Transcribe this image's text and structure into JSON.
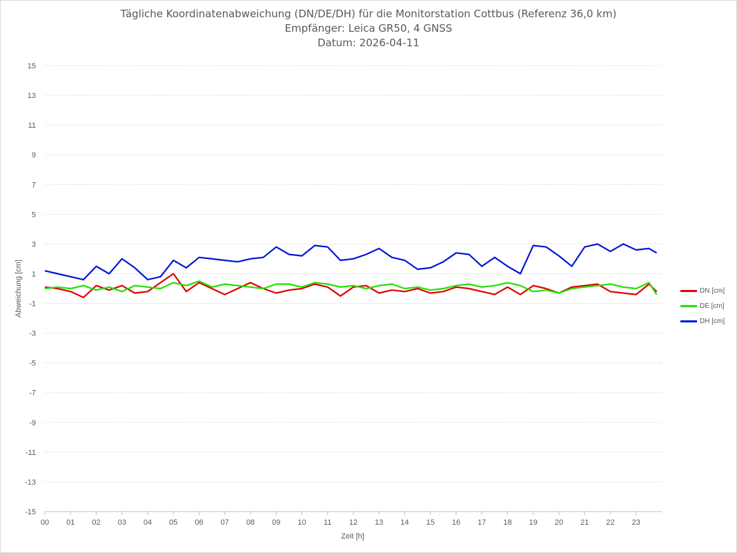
{
  "chart_data": {
    "type": "line",
    "title": "Tägliche Koordinatenabweichung (DN/DE/DH) für die Monitorstation Cottbus (Referenz 36,0 km)",
    "subtitle": "Empfänger: Leica GR50, 4 GNSS",
    "date_line": "Datum: 2026-04-11",
    "xlabel": "Zeit [h]",
    "ylabel": "Abweichung [cm]",
    "xlim": [
      0,
      24
    ],
    "ylim": [
      -15,
      15
    ],
    "x_ticks": [
      "00",
      "01",
      "02",
      "03",
      "04",
      "05",
      "06",
      "07",
      "08",
      "09",
      "10",
      "11",
      "12",
      "13",
      "14",
      "15",
      "16",
      "17",
      "18",
      "19",
      "20",
      "21",
      "22",
      "23"
    ],
    "y_ticks": [
      15,
      13,
      11,
      9,
      7,
      5,
      3,
      1,
      -1,
      -3,
      -5,
      -7,
      -9,
      -11,
      -13,
      -15
    ],
    "grid": true,
    "legend_position": "right",
    "series": [
      {
        "name": "DN [cm]",
        "color": "#e00000",
        "x": [
          0,
          0.5,
          1,
          1.5,
          2,
          2.5,
          3,
          3.5,
          4,
          4.5,
          5,
          5.5,
          6,
          6.5,
          7,
          7.5,
          8,
          8.5,
          9,
          9.5,
          10,
          10.5,
          11,
          11.5,
          12,
          12.5,
          13,
          13.5,
          14,
          14.5,
          15,
          15.5,
          16,
          16.5,
          17,
          17.5,
          18,
          18.5,
          19,
          19.5,
          20,
          20.5,
          21,
          21.5,
          22,
          22.5,
          23,
          23.5,
          23.8
        ],
        "values": [
          0.1,
          0.0,
          -0.2,
          -0.6,
          0.2,
          -0.1,
          0.2,
          -0.3,
          -0.2,
          0.4,
          1.0,
          -0.2,
          0.4,
          0.0,
          -0.4,
          0.0,
          0.4,
          0.0,
          -0.3,
          -0.1,
          0.0,
          0.3,
          0.1,
          -0.5,
          0.1,
          0.2,
          -0.3,
          -0.1,
          -0.2,
          0.0,
          -0.3,
          -0.2,
          0.1,
          0.0,
          -0.2,
          -0.4,
          0.1,
          -0.4,
          0.2,
          0.0,
          -0.3,
          0.1,
          0.2,
          0.3,
          -0.2,
          -0.3,
          -0.4,
          0.3,
          -0.2
        ]
      },
      {
        "name": "DE [cm]",
        "color": "#22e000",
        "x": [
          0,
          0.5,
          1,
          1.5,
          2,
          2.5,
          3,
          3.5,
          4,
          4.5,
          5,
          5.5,
          6,
          6.5,
          7,
          7.5,
          8,
          8.5,
          9,
          9.5,
          10,
          10.5,
          11,
          11.5,
          12,
          12.5,
          13,
          13.5,
          14,
          14.5,
          15,
          15.5,
          16,
          16.5,
          17,
          17.5,
          18,
          18.5,
          19,
          19.5,
          20,
          20.5,
          21,
          21.5,
          22,
          22.5,
          23,
          23.5,
          23.8
        ],
        "values": [
          0.0,
          0.1,
          0.0,
          0.2,
          -0.1,
          0.1,
          -0.2,
          0.2,
          0.1,
          0.0,
          0.4,
          0.2,
          0.5,
          0.1,
          0.3,
          0.2,
          0.1,
          0.0,
          0.3,
          0.3,
          0.1,
          0.4,
          0.3,
          0.1,
          0.2,
          0.0,
          0.2,
          0.3,
          0.0,
          0.1,
          -0.1,
          0.0,
          0.2,
          0.3,
          0.1,
          0.2,
          0.4,
          0.2,
          -0.2,
          -0.1,
          -0.3,
          0.0,
          0.1,
          0.2,
          0.3,
          0.1,
          0.0,
          0.4,
          -0.4
        ]
      },
      {
        "name": "DH [cm]",
        "color": "#0015d6",
        "x": [
          0,
          0.5,
          1,
          1.5,
          2,
          2.5,
          3,
          3.5,
          4,
          4.5,
          5,
          5.5,
          6,
          6.5,
          7,
          7.5,
          8,
          8.5,
          9,
          9.5,
          10,
          10.5,
          11,
          11.5,
          12,
          12.5,
          13,
          13.5,
          14,
          14.5,
          15,
          15.5,
          16,
          16.5,
          17,
          17.5,
          18,
          18.5,
          19,
          19.5,
          20,
          20.5,
          21,
          21.5,
          22,
          22.5,
          23,
          23.5,
          23.8
        ],
        "values": [
          1.2,
          1.0,
          0.8,
          0.6,
          1.5,
          1.0,
          2.0,
          1.4,
          0.6,
          0.8,
          1.9,
          1.4,
          2.1,
          2.0,
          1.9,
          1.8,
          2.0,
          2.1,
          2.8,
          2.3,
          2.2,
          2.9,
          2.8,
          1.9,
          2.0,
          2.3,
          2.7,
          2.1,
          1.9,
          1.3,
          1.4,
          1.8,
          2.4,
          2.3,
          1.5,
          2.1,
          1.5,
          1.0,
          2.9,
          2.8,
          2.2,
          1.5,
          2.8,
          3.0,
          2.5,
          3.0,
          2.6,
          2.7,
          2.4
        ]
      }
    ]
  }
}
